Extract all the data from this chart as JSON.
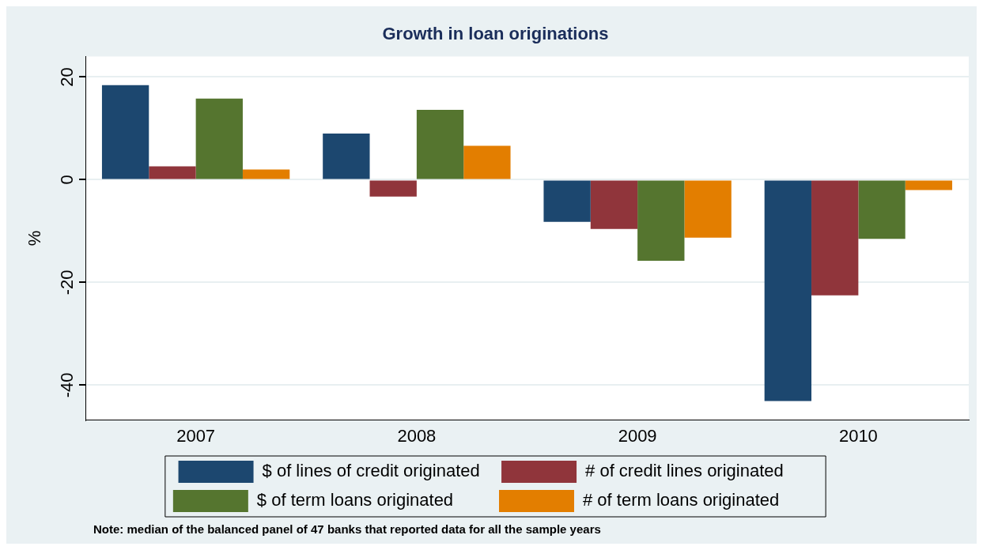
{
  "chart_data": {
    "type": "bar",
    "title": "Growth in loan originations",
    "ylabel": "%",
    "categories": [
      "2007",
      "2008",
      "2009",
      "2010"
    ],
    "series": [
      {
        "name": "$ of lines of credit originated",
        "color": "#1c476f",
        "values": [
          18.4,
          9.0,
          -8.2,
          -43.1
        ]
      },
      {
        "name": "# of credit lines originated",
        "color": "#90353b",
        "values": [
          2.6,
          -3.3,
          -9.6,
          -22.5
        ]
      },
      {
        "name": "$ of term loans originated",
        "color": "#55752f",
        "values": [
          15.8,
          13.6,
          -15.8,
          -11.5
        ]
      },
      {
        "name": "# of term loans originated",
        "color": "#e37e00",
        "values": [
          2.0,
          6.6,
          -11.3,
          -2.0
        ]
      }
    ],
    "ylim": [
      -46.8,
      24
    ],
    "yticks": [
      -40,
      -20,
      0,
      20
    ],
    "grid": "y",
    "legend": "bottom",
    "annotations": [
      "Note: median of the balanced panel of 47 banks that reported data for all the sample years"
    ]
  }
}
